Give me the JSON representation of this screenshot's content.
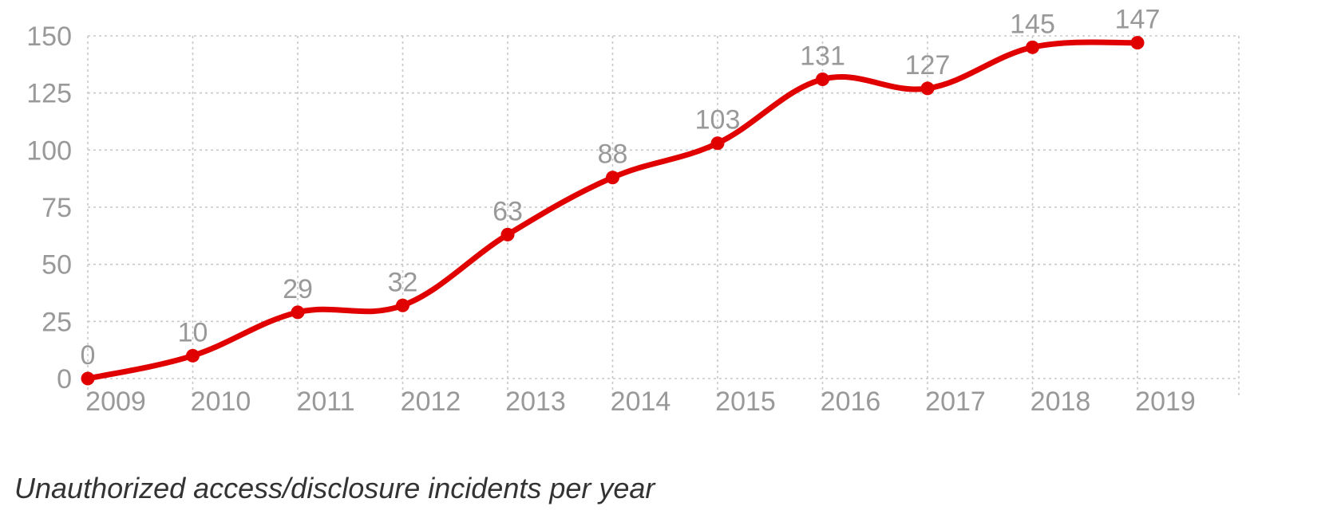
{
  "chart_data": {
    "type": "line",
    "title": "",
    "caption": "Unauthorized access/disclosure incidents per year",
    "xlabel": "",
    "ylabel": "",
    "x": [
      "2009",
      "2010",
      "2011",
      "2012",
      "2013",
      "2014",
      "2015",
      "2016",
      "2017",
      "2018",
      "2019"
    ],
    "series": [
      {
        "values": [
          0,
          10,
          29,
          32,
          63,
          88,
          103,
          131,
          127,
          145,
          147
        ],
        "color": "#e10000",
        "smooth": true,
        "markers": true
      }
    ],
    "data_labels": [
      "0",
      "10",
      "29",
      "32",
      "63",
      "88",
      "103",
      "131",
      "127",
      "145",
      "147"
    ],
    "y_ticks": [
      "0",
      "25",
      "50",
      "75",
      "100",
      "125",
      "150"
    ],
    "ylim": [
      0,
      150
    ],
    "grid": true,
    "grid_style": "dotted",
    "legend": "none",
    "colors": {
      "line": "#e10000",
      "grid": "#c8c8c8",
      "labels": "#999999"
    }
  }
}
